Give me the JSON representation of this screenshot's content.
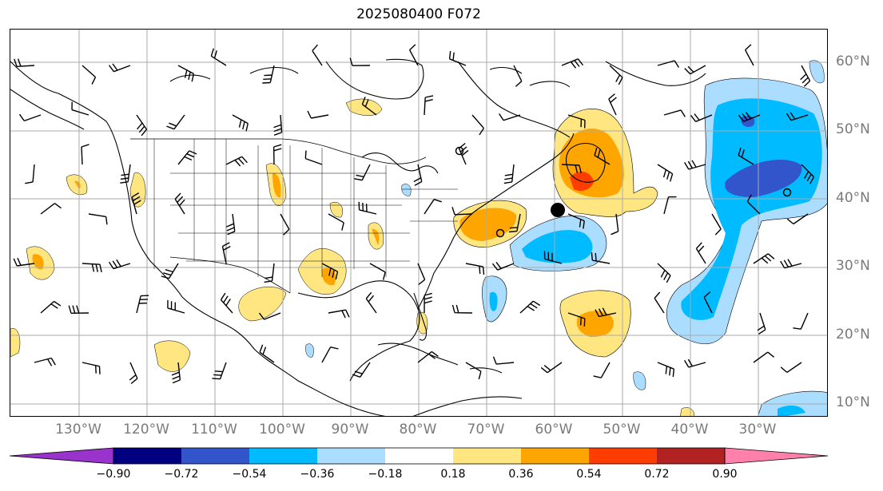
{
  "title": "2025080400 F072",
  "lat_labels": [
    "60°N",
    "50°N",
    "40°N",
    "30°N",
    "20°N",
    "10°N"
  ],
  "lon_labels": [
    "130°W",
    "120°W",
    "110°W",
    "100°W",
    "90°W",
    "80°W",
    "70°W",
    "60°W",
    "50°W",
    "40°W",
    "30°W"
  ],
  "colorbar": {
    "labels": [
      "−0.90",
      "−0.72",
      "−0.54",
      "−0.36",
      "−0.18",
      "0.18",
      "0.36",
      "0.54",
      "0.72",
      "0.90"
    ],
    "colors": [
      "#9933cc",
      "#000080",
      "#3355cc",
      "#00bbff",
      "#aaddff",
      "#ffffff",
      "#ffe680",
      "#ffa500",
      "#ff3d00",
      "#b22222",
      "#ff80aa"
    ]
  },
  "map_style": {
    "grid_color": "#aaaaaa",
    "coast_color": "#000000"
  },
  "markers": [
    {
      "name": "filled-dot-marker",
      "lon": -60,
      "lat": 38
    },
    {
      "name": "open-circle-marker",
      "lon": -70,
      "lat": 49
    },
    {
      "name": "open-circle-marker",
      "lon": -68,
      "lat": 35
    },
    {
      "name": "open-circle-marker",
      "lon": -34,
      "lat": 41
    }
  ],
  "anomaly_regions": [
    {
      "name": "canada-east-positive-anomaly",
      "sign": "positive",
      "max_level": 0.54
    },
    {
      "name": "atlantic-central-negative-anomaly",
      "sign": "negative",
      "max_level": -0.54
    },
    {
      "name": "east-atlantic-negative-anomaly",
      "sign": "negative",
      "max_level": -0.72
    },
    {
      "name": "offshore-carolinas-positive-anomaly",
      "sign": "positive",
      "max_level": 0.54
    },
    {
      "name": "caribbean-positive-anomaly",
      "sign": "positive",
      "max_level": 0.54
    }
  ]
}
